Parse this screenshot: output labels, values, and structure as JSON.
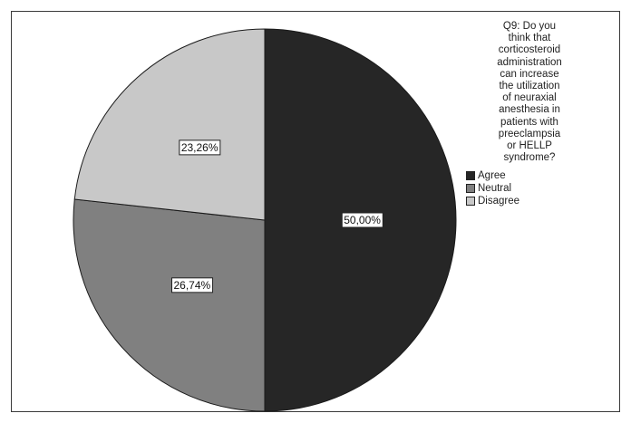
{
  "chart_data": {
    "type": "pie",
    "title": "Q9: Do you think that corticosteroid administration can increase the utilization of neuraxial anesthesia in patients with preeclampsia or HELLP syndrome?",
    "title_lines": [
      "Q9: Do you",
      "think that",
      "corticosteroid",
      "administration",
      "can increase",
      "the utilization",
      "of neuraxial",
      "anesthesia in",
      "patients with",
      "preeclampsia",
      "or HELLP",
      "syndrome?"
    ],
    "legend_placement": "top-right",
    "slices": [
      {
        "label": "Agree",
        "value": 50.0,
        "display": "50,00%",
        "color": "#262626"
      },
      {
        "label": "Neutral",
        "value": 26.74,
        "display": "26,74%",
        "color": "#808080"
      },
      {
        "label": "Disagree",
        "value": 23.26,
        "display": "23,26%",
        "color": "#c8c8c8"
      }
    ]
  }
}
